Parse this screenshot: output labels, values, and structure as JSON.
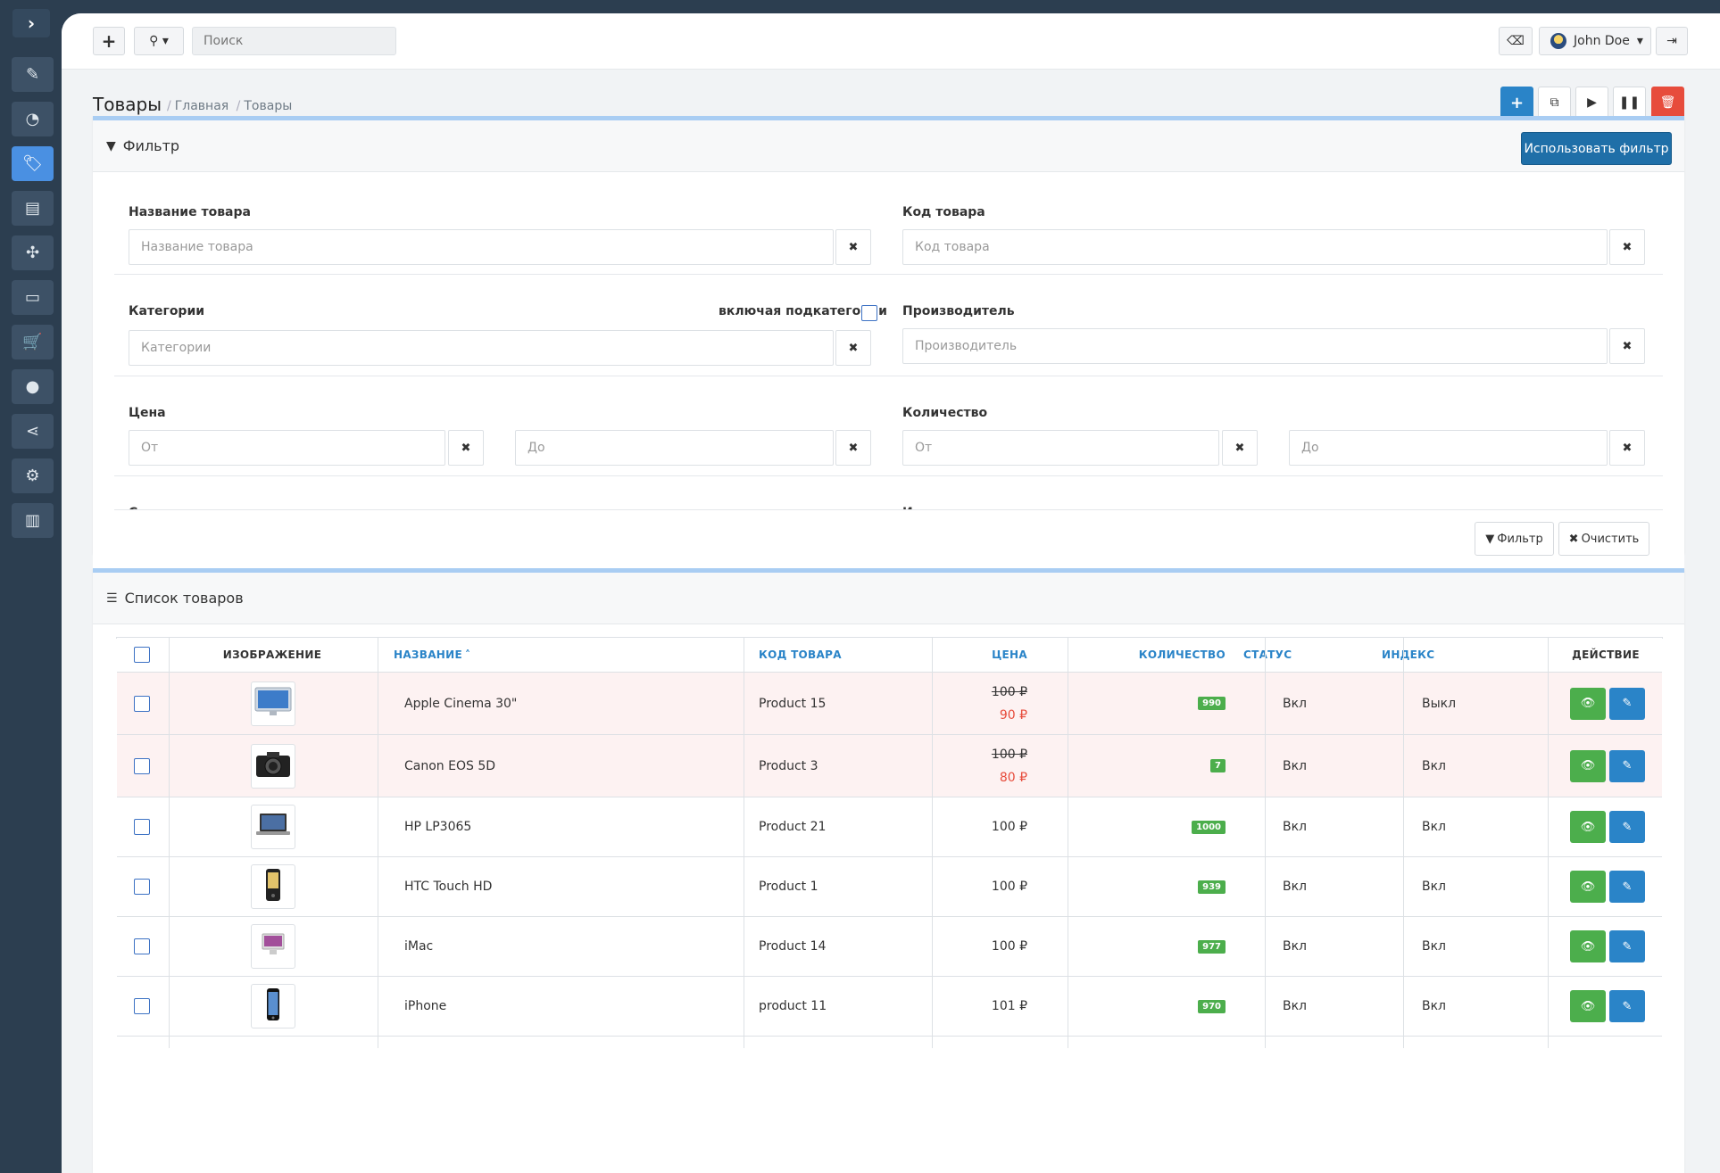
{
  "topbar": {
    "search_placeholder": "Поиск",
    "user_name": "John Doe"
  },
  "header": {
    "title": "Товары",
    "breadcrumb": [
      "Главная",
      "Товары"
    ]
  },
  "filter": {
    "title": "Фильтр",
    "apply_label": "Использовать фильтр",
    "name_label": "Название товара",
    "name_placeholder": "Название товара",
    "code_label": "Код товара",
    "code_placeholder": "Код товара",
    "categories_label": "Категории",
    "subcategories_label": "включая подкатегории",
    "categories_placeholder": "Категории",
    "manufacturer_label": "Производитель",
    "manufacturer_placeholder": "Производитель",
    "price_label": "Цена",
    "from_placeholder": "От",
    "to_placeholder": "До",
    "quantity_label": "Количество",
    "status_label": "Статус",
    "index_label": "Индексация",
    "filter_button": "Фильтр",
    "clear_button": "Очистить"
  },
  "list": {
    "title": "Список товаров",
    "columns": {
      "image": "ИЗОБРАЖЕНИЕ",
      "name": "НАЗВАНИЕ",
      "code": "КОД ТОВАРА",
      "price": "ЦЕНА",
      "quantity": "КОЛИЧЕСТВО",
      "status": "СТАТУС",
      "index": "ИНДЕКС",
      "action": "ДЕЙСТВИЕ"
    },
    "rows": [
      {
        "name": "Apple Cinema 30\"",
        "code": "Product 15",
        "old_price": "100 ₽",
        "price": "90 ₽",
        "qty": "990",
        "status": "Вкл",
        "index": "Выкл",
        "image_icon": "monitor-icon"
      },
      {
        "name": "Canon EOS 5D",
        "code": "Product 3",
        "old_price": "100 ₽",
        "price": "80 ₽",
        "qty": "7",
        "status": "Вкл",
        "index": "Вкл",
        "image_icon": "camera-icon"
      },
      {
        "name": "HP LP3065",
        "code": "Product 21",
        "old_price": "",
        "price": "100 ₽",
        "qty": "1000",
        "status": "Вкл",
        "index": "Вкл",
        "image_icon": "laptop-icon"
      },
      {
        "name": "HTC Touch HD",
        "code": "Product 1",
        "old_price": "",
        "price": "100 ₽",
        "qty": "939",
        "status": "Вкл",
        "index": "Вкл",
        "image_icon": "phone-icon"
      },
      {
        "name": "iMac",
        "code": "Product 14",
        "old_price": "",
        "price": "100 ₽",
        "qty": "977",
        "status": "Вкл",
        "index": "Вкл",
        "image_icon": "imac-icon"
      },
      {
        "name": "iPhone",
        "code": "product 11",
        "old_price": "",
        "price": "101 ₽",
        "qty": "970",
        "status": "Вкл",
        "index": "Вкл",
        "image_icon": "iphone-icon"
      }
    ]
  },
  "colors": {
    "accent": "#2a84c8",
    "success": "#4cae4c",
    "danger": "#e74c3c",
    "sidebar": "#2c3e50",
    "special_row": "#fdf2f2"
  }
}
